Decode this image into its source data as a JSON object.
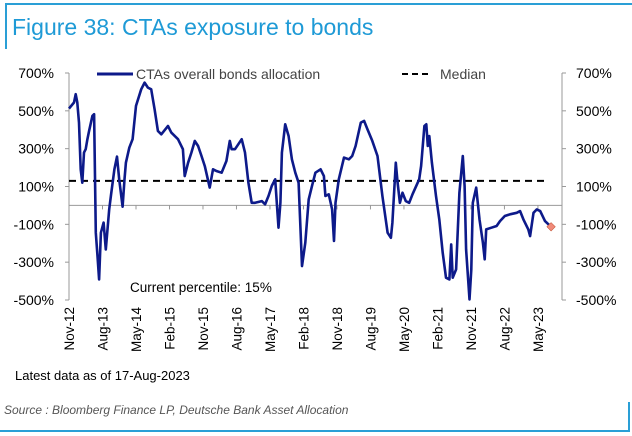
{
  "title": "Figure 38: CTAs exposure to bonds",
  "latest_note": "Latest data as of 17-Aug-2023",
  "source": "Source : Bloomberg Finance LP, Deutsche Bank Asset Allocation",
  "colors": {
    "series": "#0d1a8a",
    "median": "#000000",
    "accent": "#1e9ad6",
    "last_point": "#f08a7a"
  },
  "chart_data": {
    "type": "line",
    "title": "Figure 38: CTAs exposure to bonds",
    "annotation": "Current percentile: 15%",
    "legend": [
      {
        "name": "CTAs overall bonds allocation",
        "style": "solid"
      },
      {
        "name": "Median",
        "style": "dashed"
      }
    ],
    "legend_position": "top",
    "ylim": [
      -500,
      700
    ],
    "y_ticks": [
      "700%",
      "500%",
      "300%",
      "100%",
      "-100%",
      "-300%",
      "-500%"
    ],
    "y_tick_values": [
      700,
      500,
      300,
      100,
      -100,
      -300,
      -500
    ],
    "secondary_y_ticks": [
      "700%",
      "500%",
      "300%",
      "100%",
      "-100%",
      "-300%",
      "-500%"
    ],
    "x_ticks": [
      "Nov-12",
      "Aug-13",
      "May-14",
      "Feb-15",
      "Nov-15",
      "Aug-16",
      "May-17",
      "Feb-18",
      "Nov-18",
      "Aug-19",
      "May-20",
      "Feb-21",
      "Nov-21",
      "Aug-22",
      "May-23"
    ],
    "xlim": [
      "2012-11-01",
      "2023-11-15"
    ],
    "median": 130,
    "series": [
      {
        "name": "CTAs overall bonds allocation",
        "points": [
          [
            "2012-11-01",
            512
          ],
          [
            "2012-12-11",
            544
          ],
          [
            "2012-12-25",
            588
          ],
          [
            "2013-01-08",
            544
          ],
          [
            "2013-01-22",
            438
          ],
          [
            "2013-02-05",
            191
          ],
          [
            "2013-02-18",
            120
          ],
          [
            "2013-03-02",
            279
          ],
          [
            "2013-03-16",
            297
          ],
          [
            "2013-03-29",
            350
          ],
          [
            "2013-04-13",
            394
          ],
          [
            "2013-05-10",
            473
          ],
          [
            "2013-05-23",
            482
          ],
          [
            "2013-06-07",
            -144
          ],
          [
            "2013-06-21",
            -268
          ],
          [
            "2013-07-04",
            -391
          ],
          [
            "2013-07-18",
            -144
          ],
          [
            "2013-08-10",
            -91
          ],
          [
            "2013-08-28",
            -233
          ],
          [
            "2013-09-25",
            -21
          ],
          [
            "2013-10-10",
            59
          ],
          [
            "2013-11-07",
            191
          ],
          [
            "2013-11-28",
            258
          ],
          [
            "2013-12-16",
            138
          ],
          [
            "2014-01-13",
            -7
          ],
          [
            "2014-01-28",
            138
          ],
          [
            "2014-02-10",
            226
          ],
          [
            "2014-03-07",
            305
          ],
          [
            "2014-04-04",
            350
          ],
          [
            "2014-05-01",
            526
          ],
          [
            "2014-06-13",
            614
          ],
          [
            "2014-07-10",
            649
          ],
          [
            "2014-08-07",
            623
          ],
          [
            "2014-09-04",
            614
          ],
          [
            "2014-10-01",
            508
          ],
          [
            "2014-10-28",
            394
          ],
          [
            "2014-11-25",
            376
          ],
          [
            "2015-01-19",
            420
          ],
          [
            "2015-02-16",
            385
          ],
          [
            "2015-04-10",
            350
          ],
          [
            "2015-05-19",
            297
          ],
          [
            "2015-06-04",
            155
          ],
          [
            "2015-07-01",
            226
          ],
          [
            "2015-07-28",
            279
          ],
          [
            "2015-08-25",
            341
          ],
          [
            "2015-09-22",
            314
          ],
          [
            "2015-10-19",
            261
          ],
          [
            "2015-11-16",
            208
          ],
          [
            "2015-12-25",
            94
          ],
          [
            "2016-01-22",
            191
          ],
          [
            "2016-02-19",
            182
          ],
          [
            "2016-04-01",
            173
          ],
          [
            "2016-05-10",
            235
          ],
          [
            "2016-06-07",
            341
          ],
          [
            "2016-06-22",
            297
          ],
          [
            "2016-07-19",
            297
          ],
          [
            "2016-09-13",
            350
          ],
          [
            "2016-10-10",
            279
          ],
          [
            "2016-11-07",
            120
          ],
          [
            "2016-12-04",
            14
          ],
          [
            "2017-01-01",
            14
          ],
          [
            "2017-02-25",
            23
          ],
          [
            "2017-03-22",
            6
          ],
          [
            "2017-04-19",
            50
          ],
          [
            "2017-05-16",
            103
          ],
          [
            "2017-06-13",
            138
          ],
          [
            "2017-07-10",
            -118
          ],
          [
            "2017-07-25",
            14
          ],
          [
            "2017-08-07",
            279
          ],
          [
            "2017-09-04",
            429
          ],
          [
            "2017-10-01",
            367
          ],
          [
            "2017-10-28",
            244
          ],
          [
            "2017-11-25",
            173
          ],
          [
            "2017-12-22",
            120
          ],
          [
            "2018-01-19",
            -321
          ],
          [
            "2018-02-16",
            -197
          ],
          [
            "2018-03-13",
            32
          ],
          [
            "2018-04-10",
            103
          ],
          [
            "2018-05-07",
            173
          ],
          [
            "2018-06-19",
            191
          ],
          [
            "2018-07-16",
            155
          ],
          [
            "2018-07-28",
            50
          ],
          [
            "2018-08-25",
            59
          ],
          [
            "2018-09-22",
            -21
          ],
          [
            "2018-10-07",
            -188
          ],
          [
            "2018-10-19",
            14
          ],
          [
            "2018-11-16",
            138
          ],
          [
            "2018-12-28",
            253
          ],
          [
            "2019-02-07",
            244
          ],
          [
            "2019-03-04",
            261
          ],
          [
            "2019-04-01",
            314
          ],
          [
            "2019-05-13",
            438
          ],
          [
            "2019-06-10",
            447
          ],
          [
            "2019-07-07",
            402
          ],
          [
            "2019-08-16",
            341
          ],
          [
            "2019-09-28",
            261
          ],
          [
            "2019-11-07",
            50
          ],
          [
            "2019-12-19",
            -144
          ],
          [
            "2020-01-16",
            -171
          ],
          [
            "2020-01-28",
            -91
          ],
          [
            "2020-02-25",
            226
          ],
          [
            "2020-03-10",
            120
          ],
          [
            "2020-03-28",
            14
          ],
          [
            "2020-04-19",
            67
          ],
          [
            "2020-05-16",
            23
          ],
          [
            "2020-06-13",
            14
          ],
          [
            "2020-07-10",
            59
          ],
          [
            "2020-09-04",
            138
          ],
          [
            "2020-09-19",
            208
          ],
          [
            "2020-10-16",
            420
          ],
          [
            "2020-11-01",
            429
          ],
          [
            "2020-11-13",
            314
          ],
          [
            "2020-11-25",
            367
          ],
          [
            "2020-12-16",
            226
          ],
          [
            "2021-01-19",
            50
          ],
          [
            "2021-02-16",
            -74
          ],
          [
            "2021-03-13",
            -250
          ],
          [
            "2021-04-10",
            -382
          ],
          [
            "2021-05-07",
            -391
          ],
          [
            "2021-05-22",
            -206
          ],
          [
            "2021-06-04",
            -382
          ],
          [
            "2021-07-01",
            -338
          ],
          [
            "2021-07-28",
            67
          ],
          [
            "2021-08-25",
            261
          ],
          [
            "2021-09-10",
            103
          ],
          [
            "2021-09-22",
            -233
          ],
          [
            "2021-10-19",
            -497
          ],
          [
            "2021-11-04",
            -338
          ],
          [
            "2021-11-16",
            14
          ],
          [
            "2021-12-13",
            94
          ],
          [
            "2022-01-10",
            -74
          ],
          [
            "2022-02-07",
            -197
          ],
          [
            "2022-02-22",
            -285
          ],
          [
            "2022-03-04",
            -127
          ],
          [
            "2022-04-16",
            -118
          ],
          [
            "2022-05-28",
            -109
          ],
          [
            "2022-06-25",
            -83
          ],
          [
            "2022-08-04",
            -56
          ],
          [
            "2022-09-16",
            -47
          ],
          [
            "2022-11-10",
            -39
          ],
          [
            "2022-12-07",
            -30
          ],
          [
            "2023-01-04",
            -74
          ],
          [
            "2023-02-13",
            -127
          ],
          [
            "2023-02-28",
            -162
          ],
          [
            "2023-03-25",
            -39
          ],
          [
            "2023-04-22",
            -21
          ],
          [
            "2023-05-19",
            -30
          ],
          [
            "2023-06-28",
            -83
          ],
          [
            "2023-08-17",
            -113
          ]
        ]
      }
    ],
    "grid": false
  }
}
